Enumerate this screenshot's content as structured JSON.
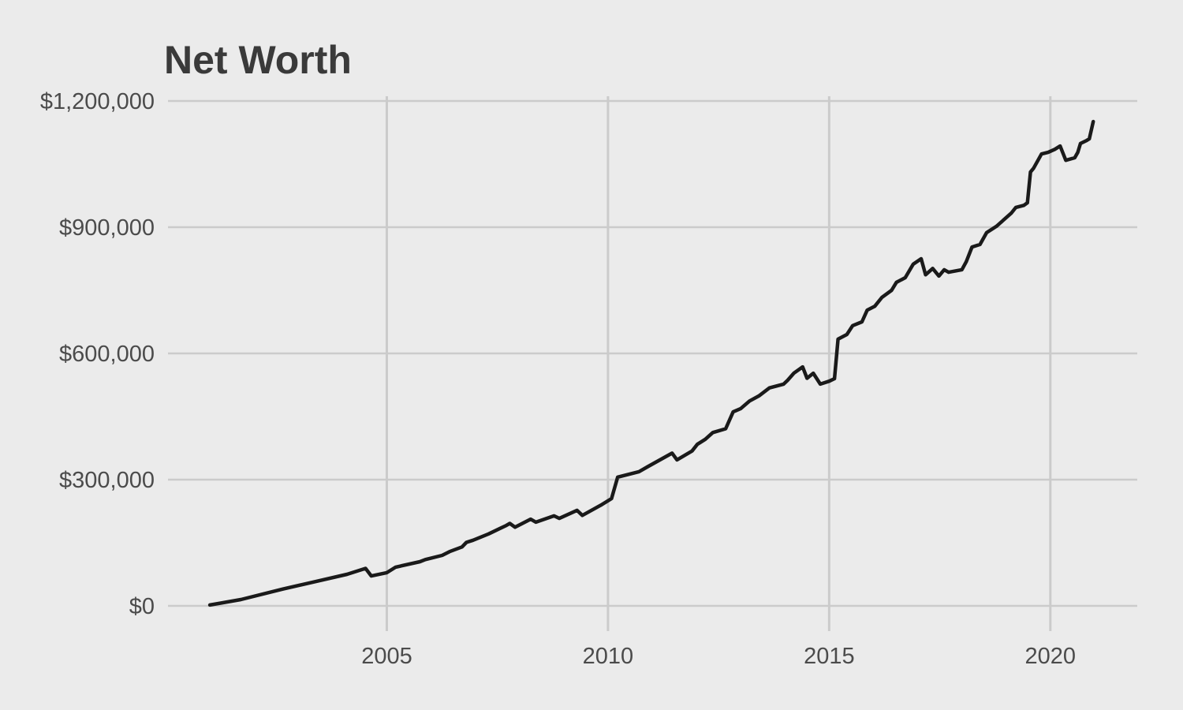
{
  "page": {
    "background_color": "#ebebeb"
  },
  "chart_data": {
    "type": "line",
    "title": "Net Worth",
    "xlabel": "",
    "ylabel": "",
    "grid": true,
    "legend": false,
    "colors": {
      "background": "#ebebeb",
      "gridline": "#cbcbcb",
      "line": "#1a1a1a",
      "title": "#3a3a3a",
      "tick_label": "#4b4b4b"
    },
    "x_axis": {
      "domain": [
        2000,
        2022
      ],
      "ticks": [
        2005,
        2010,
        2015,
        2020
      ],
      "labels": [
        "2005",
        "2010",
        "2015",
        "2020"
      ]
    },
    "y_axis": {
      "domain": [
        -60000,
        1225000
      ],
      "ticks": [
        0,
        300000,
        600000,
        900000,
        1200000
      ],
      "labels": [
        "$0",
        "$300,000",
        "$600,000",
        "$900,000",
        "$1,200,000"
      ]
    },
    "series": [
      {
        "name": "Net Worth",
        "color": "#1a1a1a",
        "points": [
          [
            2001.0,
            2000
          ],
          [
            2001.7,
            15000
          ],
          [
            2002.65,
            40000
          ],
          [
            2003.36,
            57000
          ],
          [
            2004.1,
            75000
          ],
          [
            2004.52,
            89000
          ],
          [
            2004.65,
            71000
          ],
          [
            2005.0,
            79000
          ],
          [
            2005.2,
            92000
          ],
          [
            2005.75,
            105000
          ],
          [
            2005.87,
            110000
          ],
          [
            2006.25,
            120000
          ],
          [
            2006.42,
            129000
          ],
          [
            2006.7,
            140000
          ],
          [
            2006.8,
            151000
          ],
          [
            2006.95,
            156000
          ],
          [
            2007.3,
            171000
          ],
          [
            2007.7,
            191000
          ],
          [
            2007.78,
            196000
          ],
          [
            2007.9,
            187000
          ],
          [
            2008.25,
            206000
          ],
          [
            2008.37,
            199000
          ],
          [
            2008.78,
            214000
          ],
          [
            2008.9,
            208000
          ],
          [
            2009.3,
            227000
          ],
          [
            2009.42,
            215000
          ],
          [
            2009.85,
            240000
          ],
          [
            2010.08,
            255000
          ],
          [
            2010.22,
            306000
          ],
          [
            2010.7,
            319000
          ],
          [
            2010.9,
            331000
          ],
          [
            2011.45,
            363000
          ],
          [
            2011.56,
            347000
          ],
          [
            2011.9,
            368000
          ],
          [
            2012.02,
            384000
          ],
          [
            2012.2,
            396000
          ],
          [
            2012.37,
            412000
          ],
          [
            2012.66,
            421000
          ],
          [
            2012.83,
            461000
          ],
          [
            2013.0,
            469000
          ],
          [
            2013.2,
            487000
          ],
          [
            2013.41,
            499000
          ],
          [
            2013.65,
            518000
          ],
          [
            2013.97,
            527000
          ],
          [
            2014.06,
            536000
          ],
          [
            2014.2,
            553000
          ],
          [
            2014.4,
            568000
          ],
          [
            2014.5,
            541000
          ],
          [
            2014.64,
            553000
          ],
          [
            2014.8,
            527000
          ],
          [
            2015.0,
            534000
          ],
          [
            2015.12,
            540000
          ],
          [
            2015.2,
            634000
          ],
          [
            2015.4,
            645000
          ],
          [
            2015.53,
            666000
          ],
          [
            2015.74,
            675000
          ],
          [
            2015.86,
            703000
          ],
          [
            2016.03,
            712000
          ],
          [
            2016.19,
            733000
          ],
          [
            2016.41,
            750000
          ],
          [
            2016.52,
            769000
          ],
          [
            2016.72,
            780000
          ],
          [
            2016.9,
            812000
          ],
          [
            2017.08,
            825000
          ],
          [
            2017.18,
            787000
          ],
          [
            2017.34,
            802000
          ],
          [
            2017.48,
            784000
          ],
          [
            2017.6,
            799000
          ],
          [
            2017.7,
            793000
          ],
          [
            2018.0,
            799000
          ],
          [
            2018.1,
            818000
          ],
          [
            2018.23,
            853000
          ],
          [
            2018.41,
            859000
          ],
          [
            2018.56,
            887000
          ],
          [
            2018.78,
            902000
          ],
          [
            2018.92,
            915000
          ],
          [
            2019.12,
            934000
          ],
          [
            2019.22,
            947000
          ],
          [
            2019.4,
            952000
          ],
          [
            2019.48,
            958000
          ],
          [
            2019.55,
            1031000
          ],
          [
            2019.62,
            1040000
          ],
          [
            2019.8,
            1074000
          ],
          [
            2019.95,
            1078000
          ],
          [
            2020.1,
            1085000
          ],
          [
            2020.22,
            1093000
          ],
          [
            2020.35,
            1059000
          ],
          [
            2020.55,
            1065000
          ],
          [
            2020.62,
            1078000
          ],
          [
            2020.68,
            1099000
          ],
          [
            2020.82,
            1106000
          ],
          [
            2020.88,
            1110000
          ],
          [
            2020.97,
            1151000
          ]
        ]
      }
    ]
  }
}
